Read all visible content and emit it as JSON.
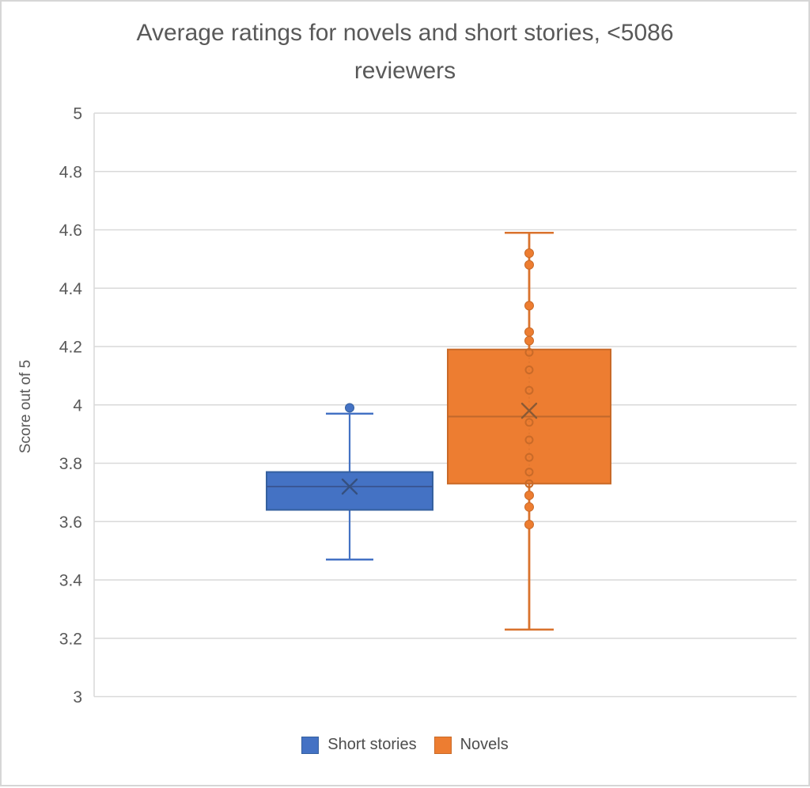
{
  "title_lines": [
    "Average ratings for novels and short stories, <5086",
    "reviewers"
  ],
  "chart_data": {
    "type": "boxplot",
    "title": "Average ratings for novels and short stories, <5086 reviewers",
    "ylabel": "Score out of 5",
    "ylim": [
      3,
      5
    ],
    "yticks": [
      3,
      3.2,
      3.4,
      3.6,
      3.8,
      4,
      4.2,
      4.4,
      4.6,
      4.8,
      5
    ],
    "ytick_labels": [
      "3",
      "3.2",
      "3.4",
      "3.6",
      "3.8",
      "4",
      "4.2",
      "4.4",
      "4.6",
      "4.8",
      "5"
    ],
    "grid": true,
    "gridline_color": "#d9d9d9",
    "legend_position": "bottom",
    "series": [
      {
        "name": "Short stories",
        "fill": "#4472C4",
        "stroke": "#35609F",
        "line": "#4472C4",
        "median_color": "#3A5795",
        "mean_color": "#35507F",
        "whisker_min": 3.47,
        "q1": 3.64,
        "median": 3.72,
        "mean": 3.72,
        "q3": 3.77,
        "whisker_max": 3.97,
        "points_outside": [
          3.99
        ],
        "points_inside": []
      },
      {
        "name": "Novels",
        "fill": "#ED7D31",
        "stroke": "#C96A28",
        "line": "#D9722C",
        "median_color": "#C0682C",
        "mean_color": "#8A5A35",
        "whisker_min": 3.23,
        "q1": 3.73,
        "median": 3.96,
        "mean": 3.98,
        "q3": 4.19,
        "whisker_max": 4.59,
        "points_outside": [
          4.52,
          4.48,
          4.34,
          4.25,
          4.22,
          3.69,
          3.65,
          3.59
        ],
        "points_inside": [
          4.18,
          4.12,
          4.05,
          3.94,
          3.88,
          3.82,
          3.77,
          3.73
        ]
      }
    ]
  },
  "legend": {
    "items": [
      {
        "label": "Short stories",
        "color": "#4472C4",
        "border": "#35609F"
      },
      {
        "label": "Novels",
        "color": "#ED7D31",
        "border": "#C96A28"
      }
    ]
  }
}
